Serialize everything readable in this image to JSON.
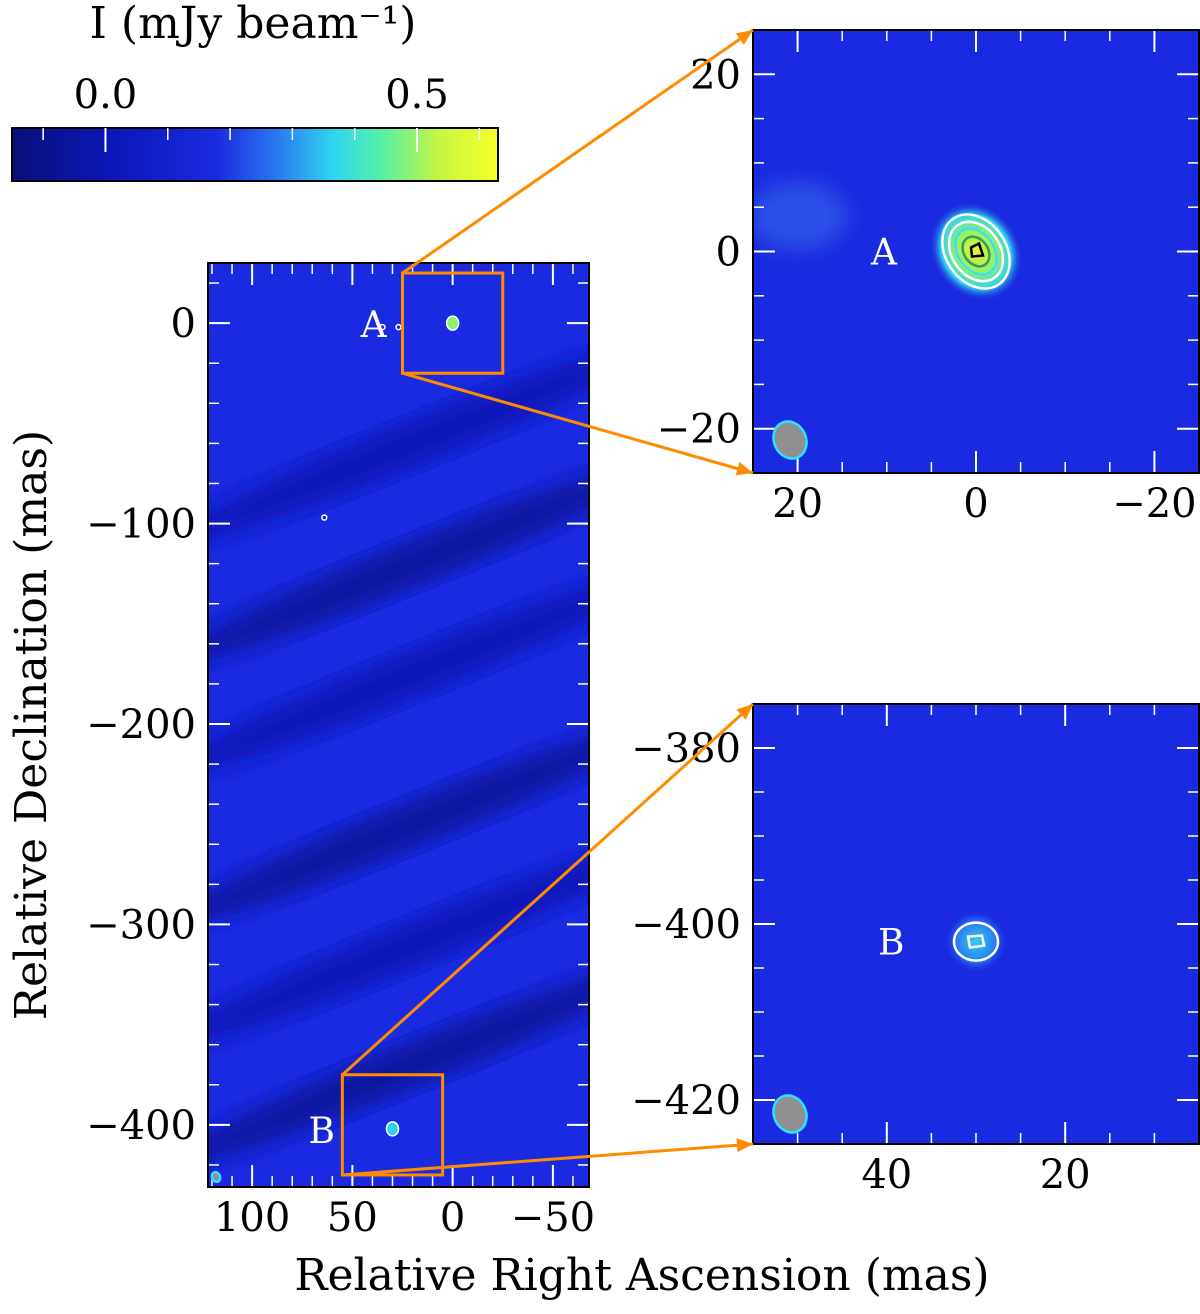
{
  "colors": {
    "map_background": "#1a2ae0",
    "colormap": [
      "#0a0f7a",
      "#0b17b8",
      "#1a2ae0",
      "#2a7cf0",
      "#2fd5f0",
      "#55f0a8",
      "#c8f540",
      "#f5ff2a"
    ],
    "zoom_box": "#ff8c00",
    "contour_outer": "#ffffff",
    "contour_mid": "#40e0f0",
    "contour_inner": "#3a9a5a",
    "contour_peak": "#000000",
    "beam_fill": "#909090",
    "beam_edge": "#30e0ff"
  },
  "colorbar": {
    "label": "I (mJy beam⁻¹)",
    "range": [
      -0.15,
      0.63
    ],
    "ticks": [
      {
        "value": 0.0,
        "label": "0.0"
      },
      {
        "value": 0.5,
        "label": "0.5"
      }
    ]
  },
  "chart_data": [
    {
      "type": "heatmap",
      "panel": "main",
      "xlabel": "Relative Right Ascension (mas)",
      "ylabel": "Relative Declination (mas)",
      "xlim": [
        122,
        -68
      ],
      "ylim": [
        -431,
        30
      ],
      "xticks": [
        {
          "value": 100,
          "label": "100"
        },
        {
          "value": 50,
          "label": "50"
        },
        {
          "value": 0,
          "label": "0"
        },
        {
          "value": -50,
          "label": "−50"
        }
      ],
      "yticks": [
        {
          "value": 0,
          "label": "0"
        },
        {
          "value": -100,
          "label": "−100"
        },
        {
          "value": -200,
          "label": "−200"
        },
        {
          "value": -300,
          "label": "−300"
        },
        {
          "value": -400,
          "label": "−400"
        }
      ],
      "sources": [
        {
          "label": "A",
          "ra": 0,
          "dec": 0
        },
        {
          "label": "B",
          "ra": 30,
          "dec": -402
        }
      ],
      "zoom_boxes": [
        {
          "ra": [
            25,
            -25
          ],
          "dec": [
            -25,
            25
          ]
        },
        {
          "ra": [
            55,
            5
          ],
          "dec": [
            -425,
            -375
          ]
        }
      ]
    },
    {
      "type": "heatmap",
      "panel": "zoom-A",
      "xlim": [
        25,
        -25
      ],
      "ylim": [
        -25,
        25
      ],
      "xticks": [
        {
          "value": 20,
          "label": "20"
        },
        {
          "value": 0,
          "label": "0"
        },
        {
          "value": -20,
          "label": "−20"
        }
      ],
      "yticks": [
        {
          "value": 20,
          "label": "20"
        },
        {
          "value": 0,
          "label": "0"
        },
        {
          "value": -20,
          "label": "−20"
        }
      ],
      "source": {
        "label": "A",
        "ra": 0,
        "dec": 0,
        "peak_mjy": 0.6
      }
    },
    {
      "type": "heatmap",
      "panel": "zoom-B",
      "xlim": [
        55,
        5
      ],
      "ylim": [
        -425,
        -375
      ],
      "xticks": [
        {
          "value": 40,
          "label": "40"
        },
        {
          "value": 20,
          "label": "20"
        }
      ],
      "yticks": [
        {
          "value": -380,
          "label": "−380"
        },
        {
          "value": -400,
          "label": "−400"
        },
        {
          "value": -420,
          "label": "−420"
        }
      ],
      "source": {
        "label": "B",
        "ra": 30,
        "dec": -402,
        "peak_mjy": 0.25
      }
    }
  ]
}
